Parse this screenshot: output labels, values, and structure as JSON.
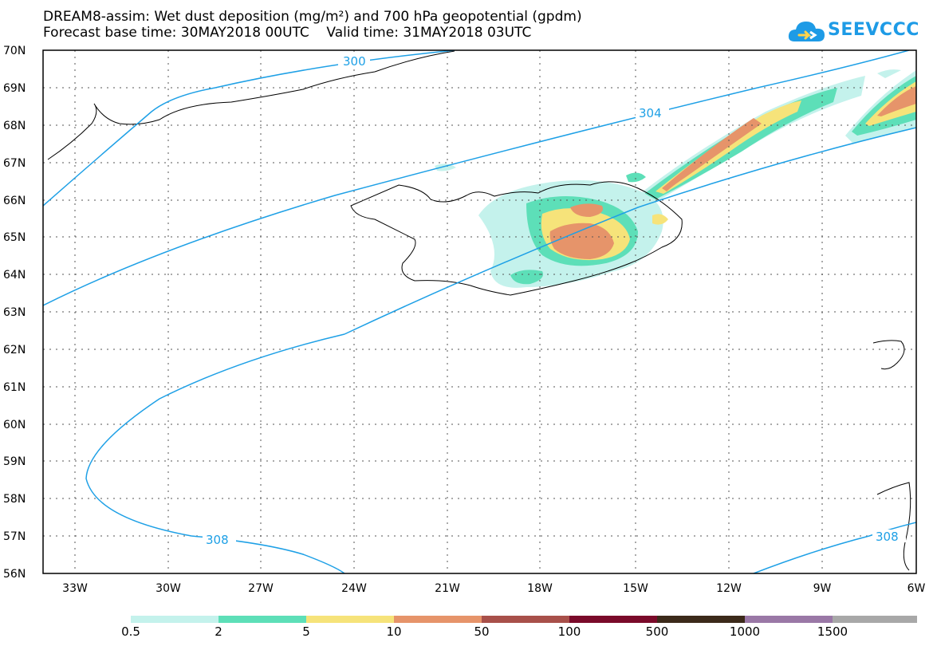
{
  "title": {
    "line1": "DREAM8-assim: Wet dust deposition (mg/m²) and 700 hPa geopotential (gpdm)",
    "line2": "Forecast base time: 30MAY2018 00UTC    Valid time: 31MAY2018 03UTC"
  },
  "logo": {
    "text": "SEEVCCC"
  },
  "map": {
    "lon_range": [
      -34.5,
      -6
    ],
    "lat_range": [
      56,
      70
    ],
    "lon_ticks": [
      {
        "value": -33,
        "label": "33W"
      },
      {
        "value": -30,
        "label": "30W"
      },
      {
        "value": -27,
        "label": "27W"
      },
      {
        "value": -24,
        "label": "24W"
      },
      {
        "value": -21,
        "label": "21W"
      },
      {
        "value": -18,
        "label": "18W"
      },
      {
        "value": -15,
        "label": "15W"
      },
      {
        "value": -12,
        "label": "12W"
      },
      {
        "value": -9,
        "label": "9W"
      },
      {
        "value": -6,
        "label": "6W"
      }
    ],
    "lat_ticks": [
      {
        "value": 70,
        "label": "70N"
      },
      {
        "value": 69,
        "label": "69N"
      },
      {
        "value": 68,
        "label": "68N"
      },
      {
        "value": 67,
        "label": "67N"
      },
      {
        "value": 66,
        "label": "66N"
      },
      {
        "value": 65,
        "label": "65N"
      },
      {
        "value": 64,
        "label": "64N"
      },
      {
        "value": 63,
        "label": "63N"
      },
      {
        "value": 62,
        "label": "62N"
      },
      {
        "value": 61,
        "label": "61N"
      },
      {
        "value": 60,
        "label": "60N"
      },
      {
        "value": 59,
        "label": "59N"
      },
      {
        "value": 58,
        "label": "58N"
      },
      {
        "value": 57,
        "label": "57N"
      },
      {
        "value": 56,
        "label": "56N"
      }
    ],
    "contour_labels": [
      "300",
      "304",
      "308",
      "308"
    ],
    "contour_color": "#1ea0e6"
  },
  "colorbar": {
    "colors": [
      "#c4f2ec",
      "#5ddfb8",
      "#f6e37a",
      "#e6946a",
      "#a8504a",
      "#7a0a2a",
      "#3c2a1a",
      "#9a78a6",
      "#a8a8a8"
    ],
    "labels": [
      "0.5",
      "2",
      "5",
      "10",
      "50",
      "100",
      "500",
      "1000",
      "1500"
    ]
  }
}
